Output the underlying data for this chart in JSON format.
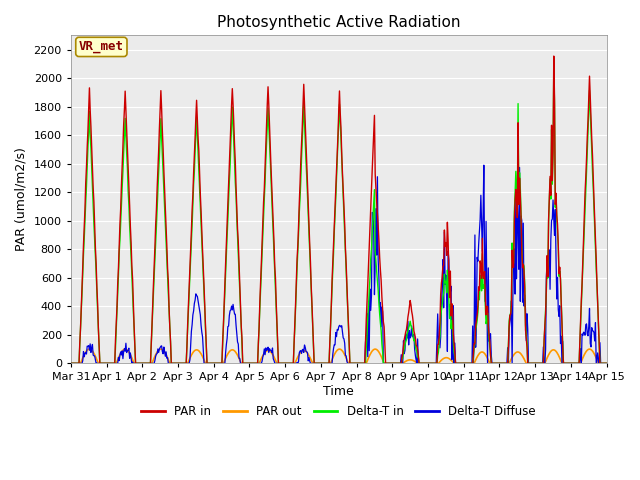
{
  "title": "Photosynthetic Active Radiation",
  "xlabel": "Time",
  "ylabel": "PAR (umol/m2/s)",
  "ylim": [
    0,
    2300
  ],
  "yticks": [
    0,
    200,
    400,
    600,
    800,
    1000,
    1200,
    1400,
    1600,
    1800,
    2000,
    2200
  ],
  "bg_color": "#ebebeb",
  "legend_labels": [
    "PAR in",
    "PAR out",
    "Delta-T in",
    "Delta-T Diffuse"
  ],
  "legend_colors": [
    "#cc0000",
    "#ff9900",
    "#00ee00",
    "#0000dd"
  ],
  "vr_met_label": "VR_met",
  "xtick_labels": [
    "Mar 31",
    "Apr 1",
    "Apr 2",
    "Apr 3",
    "Apr 4",
    "Apr 5",
    "Apr 6",
    "Apr 7",
    "Apr 8",
    "Apr 9",
    "Apr 10",
    "Apr 11",
    "Apr 12",
    "Apr 13",
    "Apr 14",
    "Apr 15"
  ],
  "n_days": 16,
  "resolution": 0.5,
  "seed": 42
}
